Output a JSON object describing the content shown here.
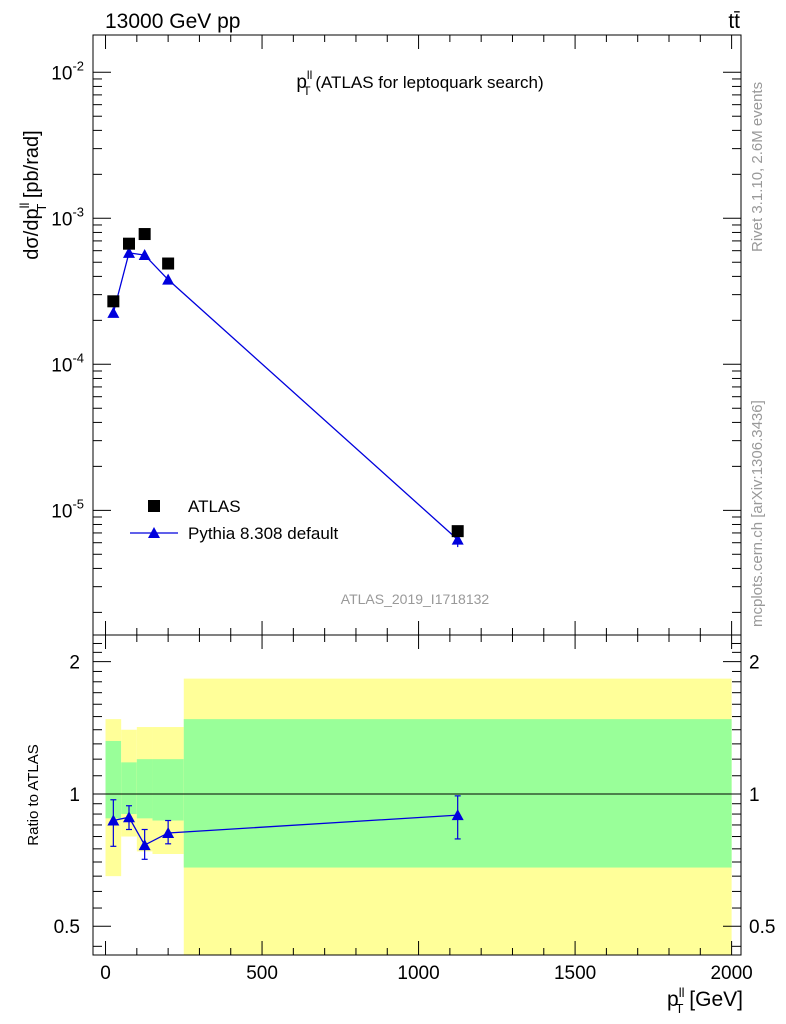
{
  "header": {
    "energy_label": "13000 GeV pp",
    "process_label": "tt̄"
  },
  "side_labels": {
    "rivet": "Rivet 3.1.10,  2.6M events",
    "mcplots": "mcplots.cern.ch [arXiv:1306.3436]"
  },
  "analysis_id": "ATLAS_2019_I1718132",
  "chart_data": [
    {
      "type": "scatter",
      "panel": "main",
      "title": {
        "main": "p",
        "sup": "ll",
        "sub": "T",
        "rest": " (ATLAS for leptoquark search)"
      },
      "ylabel": {
        "a": "dσ/dp",
        "sup": "ll",
        "sub": "T",
        "b": " [pb/rad]"
      },
      "yscale": "log",
      "ylim": [
        1.4e-06,
        0.018
      ],
      "xlim": [
        -40,
        2030
      ],
      "yticks": [
        {
          "value": 0.01,
          "base": "10",
          "exp": "-2"
        },
        {
          "value": 0.001,
          "base": "10",
          "exp": "-3"
        },
        {
          "value": 0.0001,
          "base": "10",
          "exp": "-4"
        },
        {
          "value": 1e-05,
          "base": "10",
          "exp": "-5"
        }
      ],
      "legend": {
        "position": "bottom-left",
        "entries": [
          "ATLAS",
          "Pythia 8.308 default"
        ]
      },
      "series": [
        {
          "name": "ATLAS",
          "marker": "square",
          "color": "#000000",
          "x": [
            25,
            75,
            125,
            200,
            1125
          ],
          "y": [
            0.00027,
            0.00067,
            0.00078,
            0.00049,
            7.2e-06
          ]
        },
        {
          "name": "Pythia 8.308 default",
          "marker": "triangle",
          "color": "#0000dd",
          "x": [
            25,
            75,
            125,
            200,
            1125
          ],
          "y": [
            0.000225,
            0.00058,
            0.00056,
            0.00038,
            6.3e-06
          ],
          "yerr_low": [
            0.00021,
            0.00055,
            0.00052,
            0.00036,
            5.6e-06
          ],
          "yerr_high": [
            0.000245,
            0.00062,
            0.0006,
            0.0004,
            7e-06
          ]
        }
      ]
    },
    {
      "type": "line",
      "panel": "ratio",
      "ylabel": "Ratio to ATLAS",
      "ylim": [
        0.43,
        2.3
      ],
      "xlim": [
        -40,
        2030
      ],
      "xlabel": {
        "main": "p",
        "sup": "ll",
        "sub": "T",
        "rest": " [GeV]"
      },
      "xticks": [
        0,
        500,
        1000,
        1500,
        2000
      ],
      "yticks": [
        0.5,
        1,
        2
      ],
      "bands": [
        {
          "x0": 0,
          "x1": 50,
          "yellow": [
            0.65,
            1.48
          ],
          "green": [
            0.88,
            1.32
          ]
        },
        {
          "x0": 50,
          "x1": 100,
          "yellow": [
            0.8,
            1.4
          ],
          "green": [
            0.9,
            1.18
          ]
        },
        {
          "x0": 100,
          "x1": 150,
          "yellow": [
            0.74,
            1.42
          ],
          "green": [
            0.88,
            1.2
          ]
        },
        {
          "x0": 150,
          "x1": 250,
          "yellow": [
            0.73,
            1.42
          ],
          "green": [
            0.87,
            1.2
          ]
        },
        {
          "x0": 250,
          "x1": 2000,
          "yellow": [
            0.35,
            1.83
          ],
          "green": [
            0.68,
            1.48
          ]
        }
      ],
      "series": [
        {
          "name": "Pythia 8.308 default",
          "color": "#0000dd",
          "x": [
            25,
            75,
            125,
            200,
            1125
          ],
          "y": [
            0.87,
            0.885,
            0.765,
            0.815,
            0.895
          ],
          "yerr_low": [
            0.76,
            0.83,
            0.71,
            0.77,
            0.79
          ],
          "yerr_high": [
            0.97,
            0.94,
            0.83,
            0.87,
            0.99
          ]
        }
      ]
    }
  ]
}
